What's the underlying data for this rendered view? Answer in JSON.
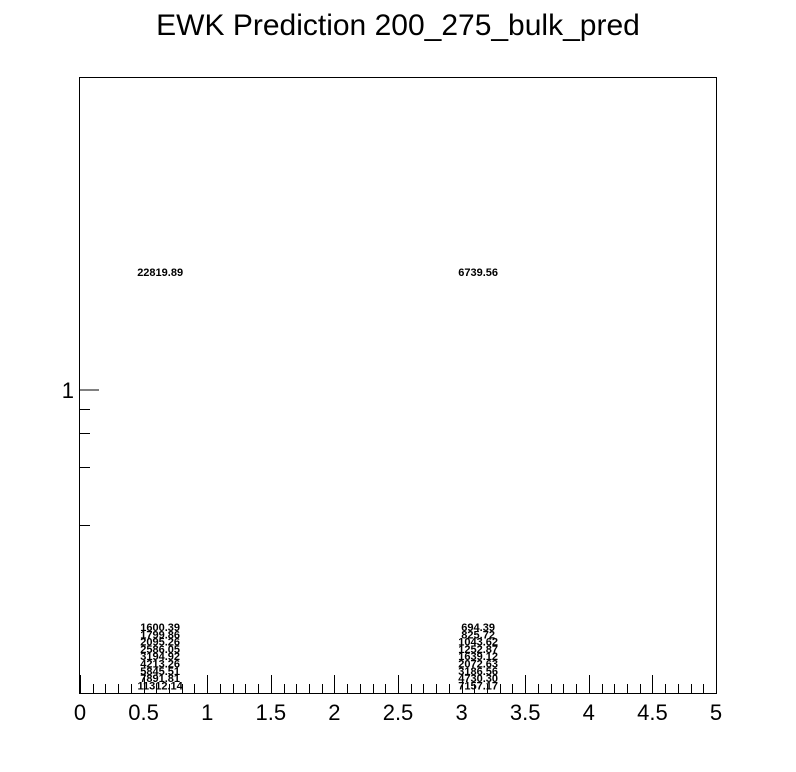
{
  "chart_data": {
    "type": "table",
    "title": "EWK Prediction 200_275_bulk_pred",
    "xlabel": "",
    "ylabel": "",
    "xlim": [
      0,
      5
    ],
    "ylim_log": true,
    "x_tick_labels": [
      "0",
      "0.5",
      "1",
      "1.5",
      "2",
      "2.5",
      "3",
      "3.5",
      "4",
      "4.5",
      "5"
    ],
    "y_tick_labels": [
      "1"
    ],
    "grid": false,
    "columns": [
      {
        "x": 0.63,
        "top_value": "22819.89",
        "stacked_values": [
          "1600.39",
          "1799.86",
          "2095.26",
          "2586.05",
          "3194.92",
          "4213.26",
          "5845.51",
          "7891.81",
          "11312.14"
        ]
      },
      {
        "x": 3.13,
        "top_value": "6739.56",
        "stacked_values": [
          "694.39",
          "825.72",
          "1043.62",
          "1252.87",
          "1639.12",
          "2072.63",
          "3186.56",
          "4730.30",
          "7157.17"
        ]
      }
    ]
  }
}
